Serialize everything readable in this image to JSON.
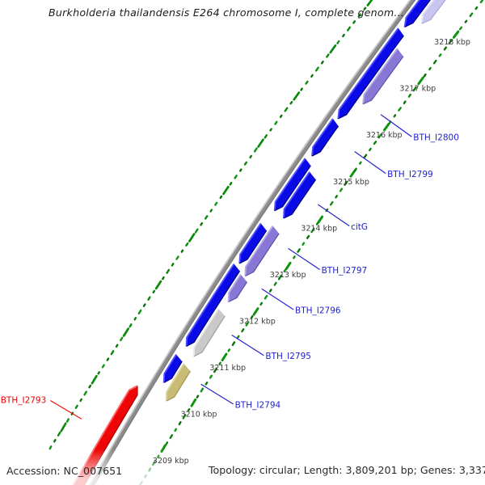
{
  "title": "Burkholderia thailandensis E264 chromosome I, complete genom...",
  "status_bar": {
    "accession": "Accession: NC_007651",
    "summary": "Topology: circular; Length: 3,809,201 bp; Genes: 3,337"
  },
  "palette": {
    "background": "#ffffff",
    "backbone": "#8c8c8c",
    "backbone_light": "#c9c9c9",
    "backbone_dark": "#787878",
    "leader_blue": "#2525ce",
    "leader_red": "#ee1111",
    "label_blue": "#1f1fd0",
    "label_red": "#ee0000",
    "tick_text": "#3d3d3d",
    "dash_greens": [
      "#0a8a0a",
      "#087c08",
      "#0c950c",
      "#066f06"
    ],
    "gene_colors": {
      "blue": {
        "base": "#0a0ae6",
        "light": "#5050ff",
        "dark": "#000080"
      },
      "purple": {
        "base": "#8877d4",
        "light": "#b4acea",
        "dark": "#5d4fa8"
      },
      "pale": {
        "base": "#c9c5ef",
        "light": "#e2dff8",
        "dark": "#a9a3dc"
      },
      "silver": {
        "base": "#c9c9c9",
        "light": "#e9e9e9",
        "dark": "#9e9e9e"
      },
      "tan": {
        "base": "#c7bb76",
        "light": "#dfd7a4",
        "dark": "#9e9350"
      },
      "red": {
        "base": "#ee0505",
        "light": "#ff6a6a",
        "dark": "#a80000"
      }
    }
  },
  "map": {
    "ticks": [
      {
        "kbp": 3209,
        "label": "3209 kbp"
      },
      {
        "kbp": 3210,
        "label": "3210 kbp"
      },
      {
        "kbp": 3211,
        "label": "3211 kbp"
      },
      {
        "kbp": 3212,
        "label": "3212 kbp"
      },
      {
        "kbp": 3213,
        "label": "3213 kbp"
      },
      {
        "kbp": 3214,
        "label": "3214 kbp"
      },
      {
        "kbp": 3215,
        "label": "3215 kbp"
      },
      {
        "kbp": 3216,
        "label": "3216 kbp"
      },
      {
        "kbp": 3217,
        "label": "3217 kbp"
      },
      {
        "kbp": 3218,
        "label": "3218 kbp"
      }
    ],
    "tracks": {
      "t0": {
        "r": 12,
        "hw": 5.4
      },
      "t1": {
        "r": 26.5,
        "hw": 5.8
      },
      "tR": {
        "r": -14,
        "hw": 6.0
      }
    },
    "genes": [
      {
        "id": "g1",
        "track": "t0",
        "color": "blue",
        "from": 3217.6,
        "to": 3219.4,
        "strand": "rev",
        "label": null
      },
      {
        "id": "BTH_I2800",
        "track": "t0",
        "color": "blue",
        "from": 3215.65,
        "to": 3217.5,
        "strand": "rev",
        "label": "BTH_I2800",
        "anchor_kbp": 3216.12,
        "label_side": "right"
      },
      {
        "id": "BTH_I2799",
        "track": "t0",
        "color": "blue",
        "from": 3214.86,
        "to": 3215.58,
        "strand": "rev",
        "label": "BTH_I2799",
        "anchor_kbp": 3215.33,
        "label_side": "right"
      },
      {
        "id": "g4",
        "track": "t0",
        "color": "blue",
        "from": 3213.7,
        "to": 3214.74,
        "strand": "rev",
        "label": null
      },
      {
        "id": "g5",
        "track": "t0",
        "color": "blue",
        "from": 3212.58,
        "to": 3213.36,
        "strand": "rev",
        "label": null
      },
      {
        "id": "g6",
        "track": "t0",
        "color": "blue",
        "from": 3210.82,
        "to": 3212.5,
        "strand": "rev",
        "label": null
      },
      {
        "id": "g7",
        "track": "t0",
        "color": "blue",
        "from": 3210.05,
        "to": 3210.58,
        "strand": "rev",
        "label": null
      },
      {
        "id": "g8",
        "track": "t1",
        "color": "pale",
        "from": 3217.82,
        "to": 3219.4,
        "strand": "rev",
        "label": null
      },
      {
        "id": "g9",
        "track": "t1",
        "color": "purple",
        "from": 3216.11,
        "to": 3217.21,
        "strand": "rev",
        "label": null
      },
      {
        "id": "citG",
        "track": "t1",
        "color": "blue",
        "from": 3213.68,
        "to": 3214.59,
        "strand": "rev",
        "label": "citG",
        "anchor_kbp": 3214.2,
        "label_side": "right"
      },
      {
        "id": "BTH_I2797",
        "track": "t1",
        "color": "purple",
        "from": 3212.45,
        "to": 3213.44,
        "strand": "rev",
        "label": "BTH_I2797",
        "anchor_kbp": 3213.26,
        "label_side": "right"
      },
      {
        "id": "BTH_I2796",
        "track": "t1",
        "color": "purple",
        "from": 3211.9,
        "to": 3212.41,
        "strand": "rev",
        "label": "BTH_I2796",
        "anchor_kbp": 3212.4,
        "label_side": "right"
      },
      {
        "id": "BTH_I2795",
        "track": "t1",
        "color": "silver",
        "from": 3210.74,
        "to": 3211.68,
        "strand": "rev",
        "label": "BTH_I2795",
        "anchor_kbp": 3211.41,
        "label_side": "right"
      },
      {
        "id": "BTH_I2794",
        "track": "t1",
        "color": "tan",
        "from": 3209.79,
        "to": 3210.51,
        "strand": "rev",
        "label": "BTH_I2794",
        "anchor_kbp": 3210.36,
        "label_side": "right"
      },
      {
        "id": "BTH_I2793",
        "track": "tR",
        "color": "red",
        "from": 3207.4,
        "to": 3209.71,
        "strand": "fwd",
        "label": "BTH_I2793",
        "anchor_kbp": 3208.7,
        "label_side": "left"
      }
    ],
    "decor": {
      "dash_step_kbp": 0.1455,
      "right_len_pattern": [
        3,
        2.2,
        4,
        2.5,
        3.2,
        5,
        2.2
      ],
      "left_len_pattern": [
        3.2,
        2.3,
        4.5,
        2.6,
        3.6,
        2.2
      ],
      "left_long_len": 10.5,
      "tick_dash_len": 9
    }
  }
}
